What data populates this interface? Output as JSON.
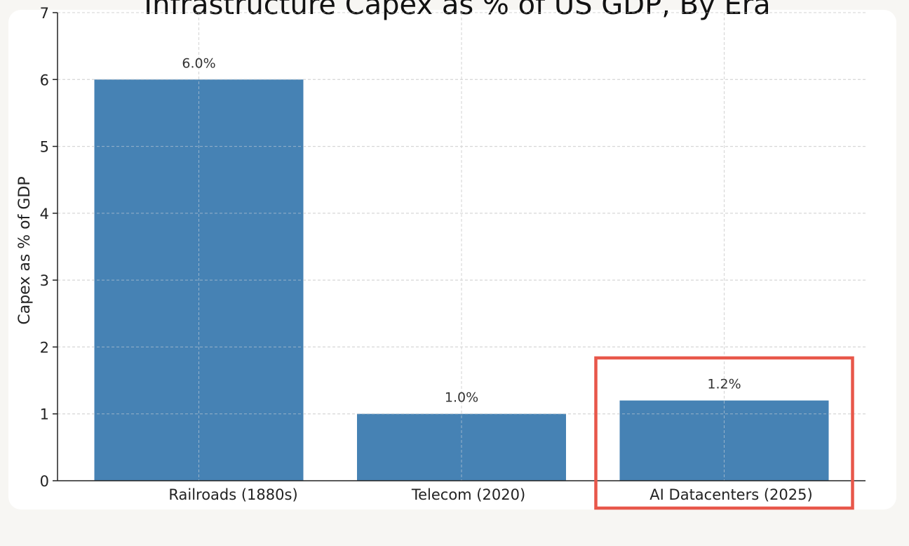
{
  "chart_data": {
    "type": "bar",
    "title": "Infrastructure Capex as % of US GDP, By Era",
    "xlabel": "",
    "ylabel": "Capex as % of GDP",
    "categories": [
      "Railroads (1880s)",
      "Telecom (2020)",
      "AI Datacenters (2025)"
    ],
    "values": [
      6.0,
      1.0,
      1.2
    ],
    "data_labels": [
      "6.0%",
      "1.0%",
      "1.2%"
    ],
    "ylim": [
      0,
      7
    ],
    "yticks": [
      "0",
      "1",
      "2",
      "3",
      "4",
      "5",
      "6",
      "7"
    ],
    "grid": true,
    "legend": "none",
    "bar_color": "#4682b4",
    "highlight": {
      "category": "AI Datacenters (2025)",
      "color": "#e8574a"
    }
  }
}
